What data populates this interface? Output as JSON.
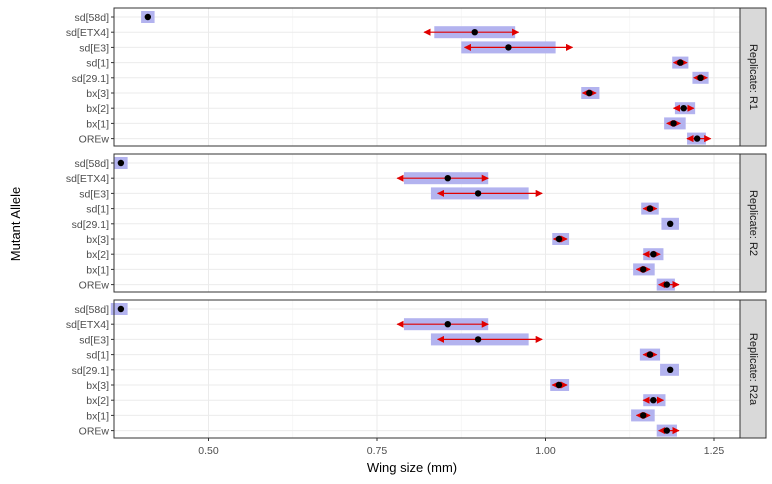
{
  "chart_data": {
    "type": "faceted-interval-dot",
    "xlabel": "Wing size (mm)",
    "ylabel": "Mutant Allele",
    "xlim": [
      0.3,
      1.29
    ],
    "xticks": [
      0.5,
      0.75,
      1.0,
      1.25
    ],
    "xtick_labels": [
      "0.50",
      "0.75",
      "1.00",
      "1.25"
    ],
    "categories": [
      "sd[58d]",
      "sd[ETX4]",
      "sd[E3]",
      "sd[1]",
      "sd[29.1]",
      "bx[3]",
      "bx[2]",
      "bx[1]",
      "OREw"
    ],
    "grid": true,
    "colors": {
      "ci_band": "#b3b3ef",
      "arrow": "#e00000",
      "point": "#000000",
      "strip": "#d9d9d9"
    },
    "panels": [
      {
        "label": "Replicate: R1",
        "points": [
          {
            "category": "sd[58d]",
            "value": 0.41,
            "band": [
              0.4,
              0.42
            ],
            "arrow": null
          },
          {
            "category": "sd[ETX4]",
            "value": 0.895,
            "band": [
              0.835,
              0.955
            ],
            "arrow": [
              0.82,
              0.96
            ]
          },
          {
            "category": "sd[E3]",
            "value": 0.945,
            "band": [
              0.875,
              1.015
            ],
            "arrow": [
              0.88,
              1.04
            ]
          },
          {
            "category": "sd[1]",
            "value": 1.2,
            "band": [
              1.188,
              1.212
            ],
            "arrow": [
              1.19,
              1.21
            ]
          },
          {
            "category": "sd[29.1]",
            "value": 1.23,
            "band": [
              1.218,
              1.242
            ],
            "arrow": [
              1.22,
              1.24
            ]
          },
          {
            "category": "bx[3]",
            "value": 1.065,
            "band": [
              1.053,
              1.08
            ],
            "arrow": [
              1.055,
              1.075
            ]
          },
          {
            "category": "bx[2]",
            "value": 1.205,
            "band": [
              1.192,
              1.222
            ],
            "arrow": [
              1.19,
              1.22
            ]
          },
          {
            "category": "bx[1]",
            "value": 1.19,
            "band": [
              1.176,
              1.208
            ],
            "arrow": [
              1.18,
              1.2
            ]
          },
          {
            "category": "OREw",
            "value": 1.225,
            "band": [
              1.21,
              1.238
            ],
            "arrow": [
              1.21,
              1.245
            ]
          }
        ]
      },
      {
        "label": "Replicate: R2",
        "points": [
          {
            "category": "sd[58d]",
            "value": 0.37,
            "band": [
              0.36,
              0.38
            ],
            "arrow": null
          },
          {
            "category": "sd[ETX4]",
            "value": 0.855,
            "band": [
              0.79,
              0.915
            ],
            "arrow": [
              0.78,
              0.915
            ]
          },
          {
            "category": "sd[E3]",
            "value": 0.9,
            "band": [
              0.83,
              0.975
            ],
            "arrow": [
              0.84,
              0.995
            ]
          },
          {
            "category": "sd[1]",
            "value": 1.155,
            "band": [
              1.142,
              1.168
            ],
            "arrow": [
              1.145,
              1.165
            ]
          },
          {
            "category": "sd[29.1]",
            "value": 1.185,
            "band": [
              1.172,
              1.198
            ],
            "arrow": null
          },
          {
            "category": "bx[3]",
            "value": 1.02,
            "band": [
              1.01,
              1.035
            ],
            "arrow": [
              1.012,
              1.032
            ]
          },
          {
            "category": "bx[2]",
            "value": 1.16,
            "band": [
              1.145,
              1.175
            ],
            "arrow": [
              1.145,
              1.17
            ]
          },
          {
            "category": "bx[1]",
            "value": 1.145,
            "band": [
              1.13,
              1.162
            ],
            "arrow": [
              1.135,
              1.155
            ]
          },
          {
            "category": "OREw",
            "value": 1.18,
            "band": [
              1.165,
              1.192
            ],
            "arrow": [
              1.168,
              1.198
            ]
          }
        ]
      },
      {
        "label": "Replicate: R2a",
        "points": [
          {
            "category": "sd[58d]",
            "value": 0.37,
            "band": [
              0.355,
              0.38
            ],
            "arrow": null
          },
          {
            "category": "sd[ETX4]",
            "value": 0.855,
            "band": [
              0.79,
              0.915
            ],
            "arrow": [
              0.78,
              0.915
            ]
          },
          {
            "category": "sd[E3]",
            "value": 0.9,
            "band": [
              0.83,
              0.975
            ],
            "arrow": [
              0.84,
              0.995
            ]
          },
          {
            "category": "sd[1]",
            "value": 1.155,
            "band": [
              1.14,
              1.17
            ],
            "arrow": [
              1.145,
              1.165
            ]
          },
          {
            "category": "sd[29.1]",
            "value": 1.185,
            "band": [
              1.17,
              1.198
            ],
            "arrow": null
          },
          {
            "category": "bx[3]",
            "value": 1.02,
            "band": [
              1.007,
              1.035
            ],
            "arrow": [
              1.01,
              1.032
            ]
          },
          {
            "category": "bx[2]",
            "value": 1.16,
            "band": [
              1.145,
              1.178
            ],
            "arrow": [
              1.145,
              1.175
            ]
          },
          {
            "category": "bx[1]",
            "value": 1.145,
            "band": [
              1.127,
              1.162
            ],
            "arrow": [
              1.135,
              1.155
            ]
          },
          {
            "category": "OREw",
            "value": 1.18,
            "band": [
              1.165,
              1.195
            ],
            "arrow": [
              1.168,
              1.198
            ]
          }
        ]
      }
    ]
  }
}
